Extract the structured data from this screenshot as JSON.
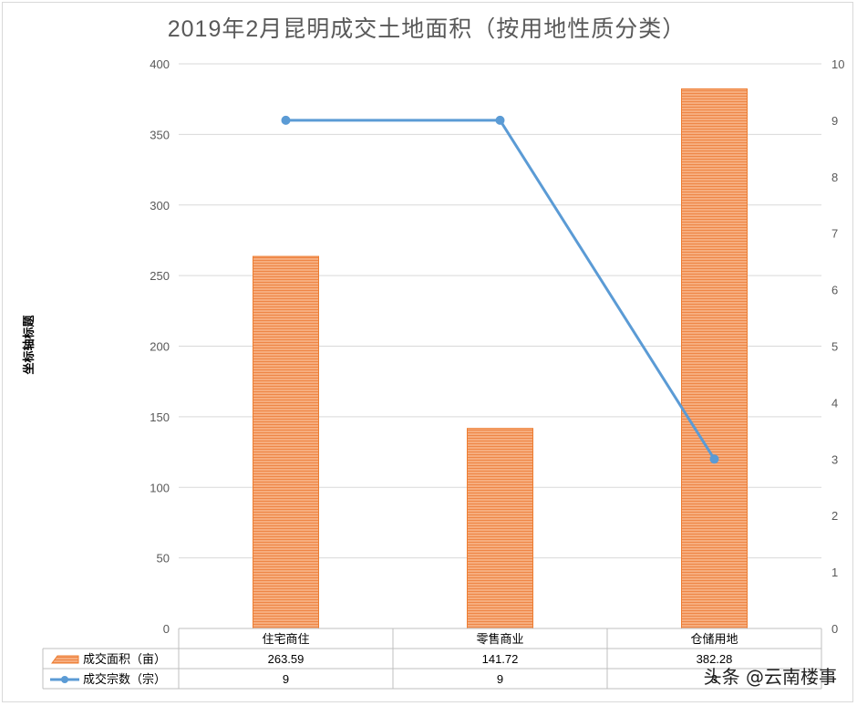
{
  "chart_data": {
    "type": "bar",
    "title": "2019年2月昆明成交土地面积（按用地性质分类）",
    "categories": [
      "住宅商住",
      "零售商业",
      "仓储用地"
    ],
    "series": [
      {
        "name": "成交面积（亩）",
        "type": "bar",
        "axis": "left",
        "values": [
          263.59,
          141.72,
          382.28
        ],
        "value_labels": [
          "263.59",
          "141.72",
          "382.28"
        ]
      },
      {
        "name": "成交宗数（宗）",
        "type": "line",
        "axis": "right",
        "values": [
          9,
          9,
          3
        ],
        "value_labels": [
          "9",
          "9",
          "3"
        ]
      }
    ],
    "ylabel": "坐标轴标题",
    "ylim": [
      0,
      400
    ],
    "y_ticks": [
      "0",
      "50",
      "100",
      "150",
      "200",
      "250",
      "300",
      "350",
      "400"
    ],
    "y2lim": [
      0,
      10
    ],
    "y2_ticks": [
      "0",
      "1",
      "2",
      "3",
      "4",
      "5",
      "6",
      "7",
      "8",
      "9",
      "10"
    ],
    "grid": true,
    "data_table": true,
    "colors": {
      "bar": "#F4A26E",
      "bar_edge": "#ED7D31",
      "line": "#5B9BD5",
      "grid": "#d9d9d9"
    }
  },
  "watermark": "头条 @云南楼事"
}
